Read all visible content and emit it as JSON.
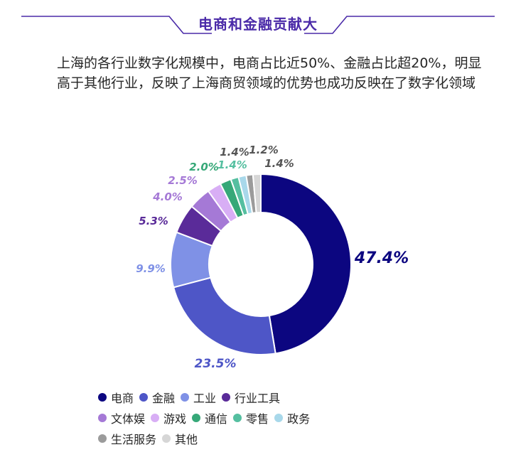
{
  "banner": {
    "title": "电商和金融贡献大"
  },
  "intro_text": "上海的各行业数字化规模中，电商占比近50%、金融占比超20%，明显高于其他行业，反映了上海商贸领域的优势也成功反映在了数字化领域",
  "chart_data": {
    "type": "pie",
    "subtype": "donut",
    "title": "",
    "series": [
      {
        "name": "电商",
        "value": 47.4,
        "label": "47.4%",
        "color": "#0c0680"
      },
      {
        "name": "金融",
        "value": 23.5,
        "label": "23.5%",
        "color": "#4e56c7"
      },
      {
        "name": "工业",
        "value": 9.9,
        "label": "9.9%",
        "color": "#7f91e6"
      },
      {
        "name": "行业工具",
        "value": 5.3,
        "label": "5.3%",
        "color": "#5a2b99"
      },
      {
        "name": "文体娱",
        "value": 4.0,
        "label": "4.0%",
        "color": "#a579d6"
      },
      {
        "name": "游戏",
        "value": 2.5,
        "label": "2.5%",
        "color": "#d8aef5"
      },
      {
        "name": "通信",
        "value": 2.0,
        "label": "2.0%",
        "color": "#36a878"
      },
      {
        "name": "零售",
        "value": 1.4,
        "label": "1.4%",
        "color": "#55bfa0"
      },
      {
        "name": "政务",
        "value": 1.4,
        "label": "1.4%",
        "color": "#a8d8ea"
      },
      {
        "name": "生活服务",
        "value": 1.2,
        "label": "1.2%",
        "color": "#9b9b9b"
      },
      {
        "name": "其他",
        "value": 1.4,
        "label": "1.4%",
        "color": "#d6d6d6"
      }
    ],
    "legend_position": "bottom"
  }
}
